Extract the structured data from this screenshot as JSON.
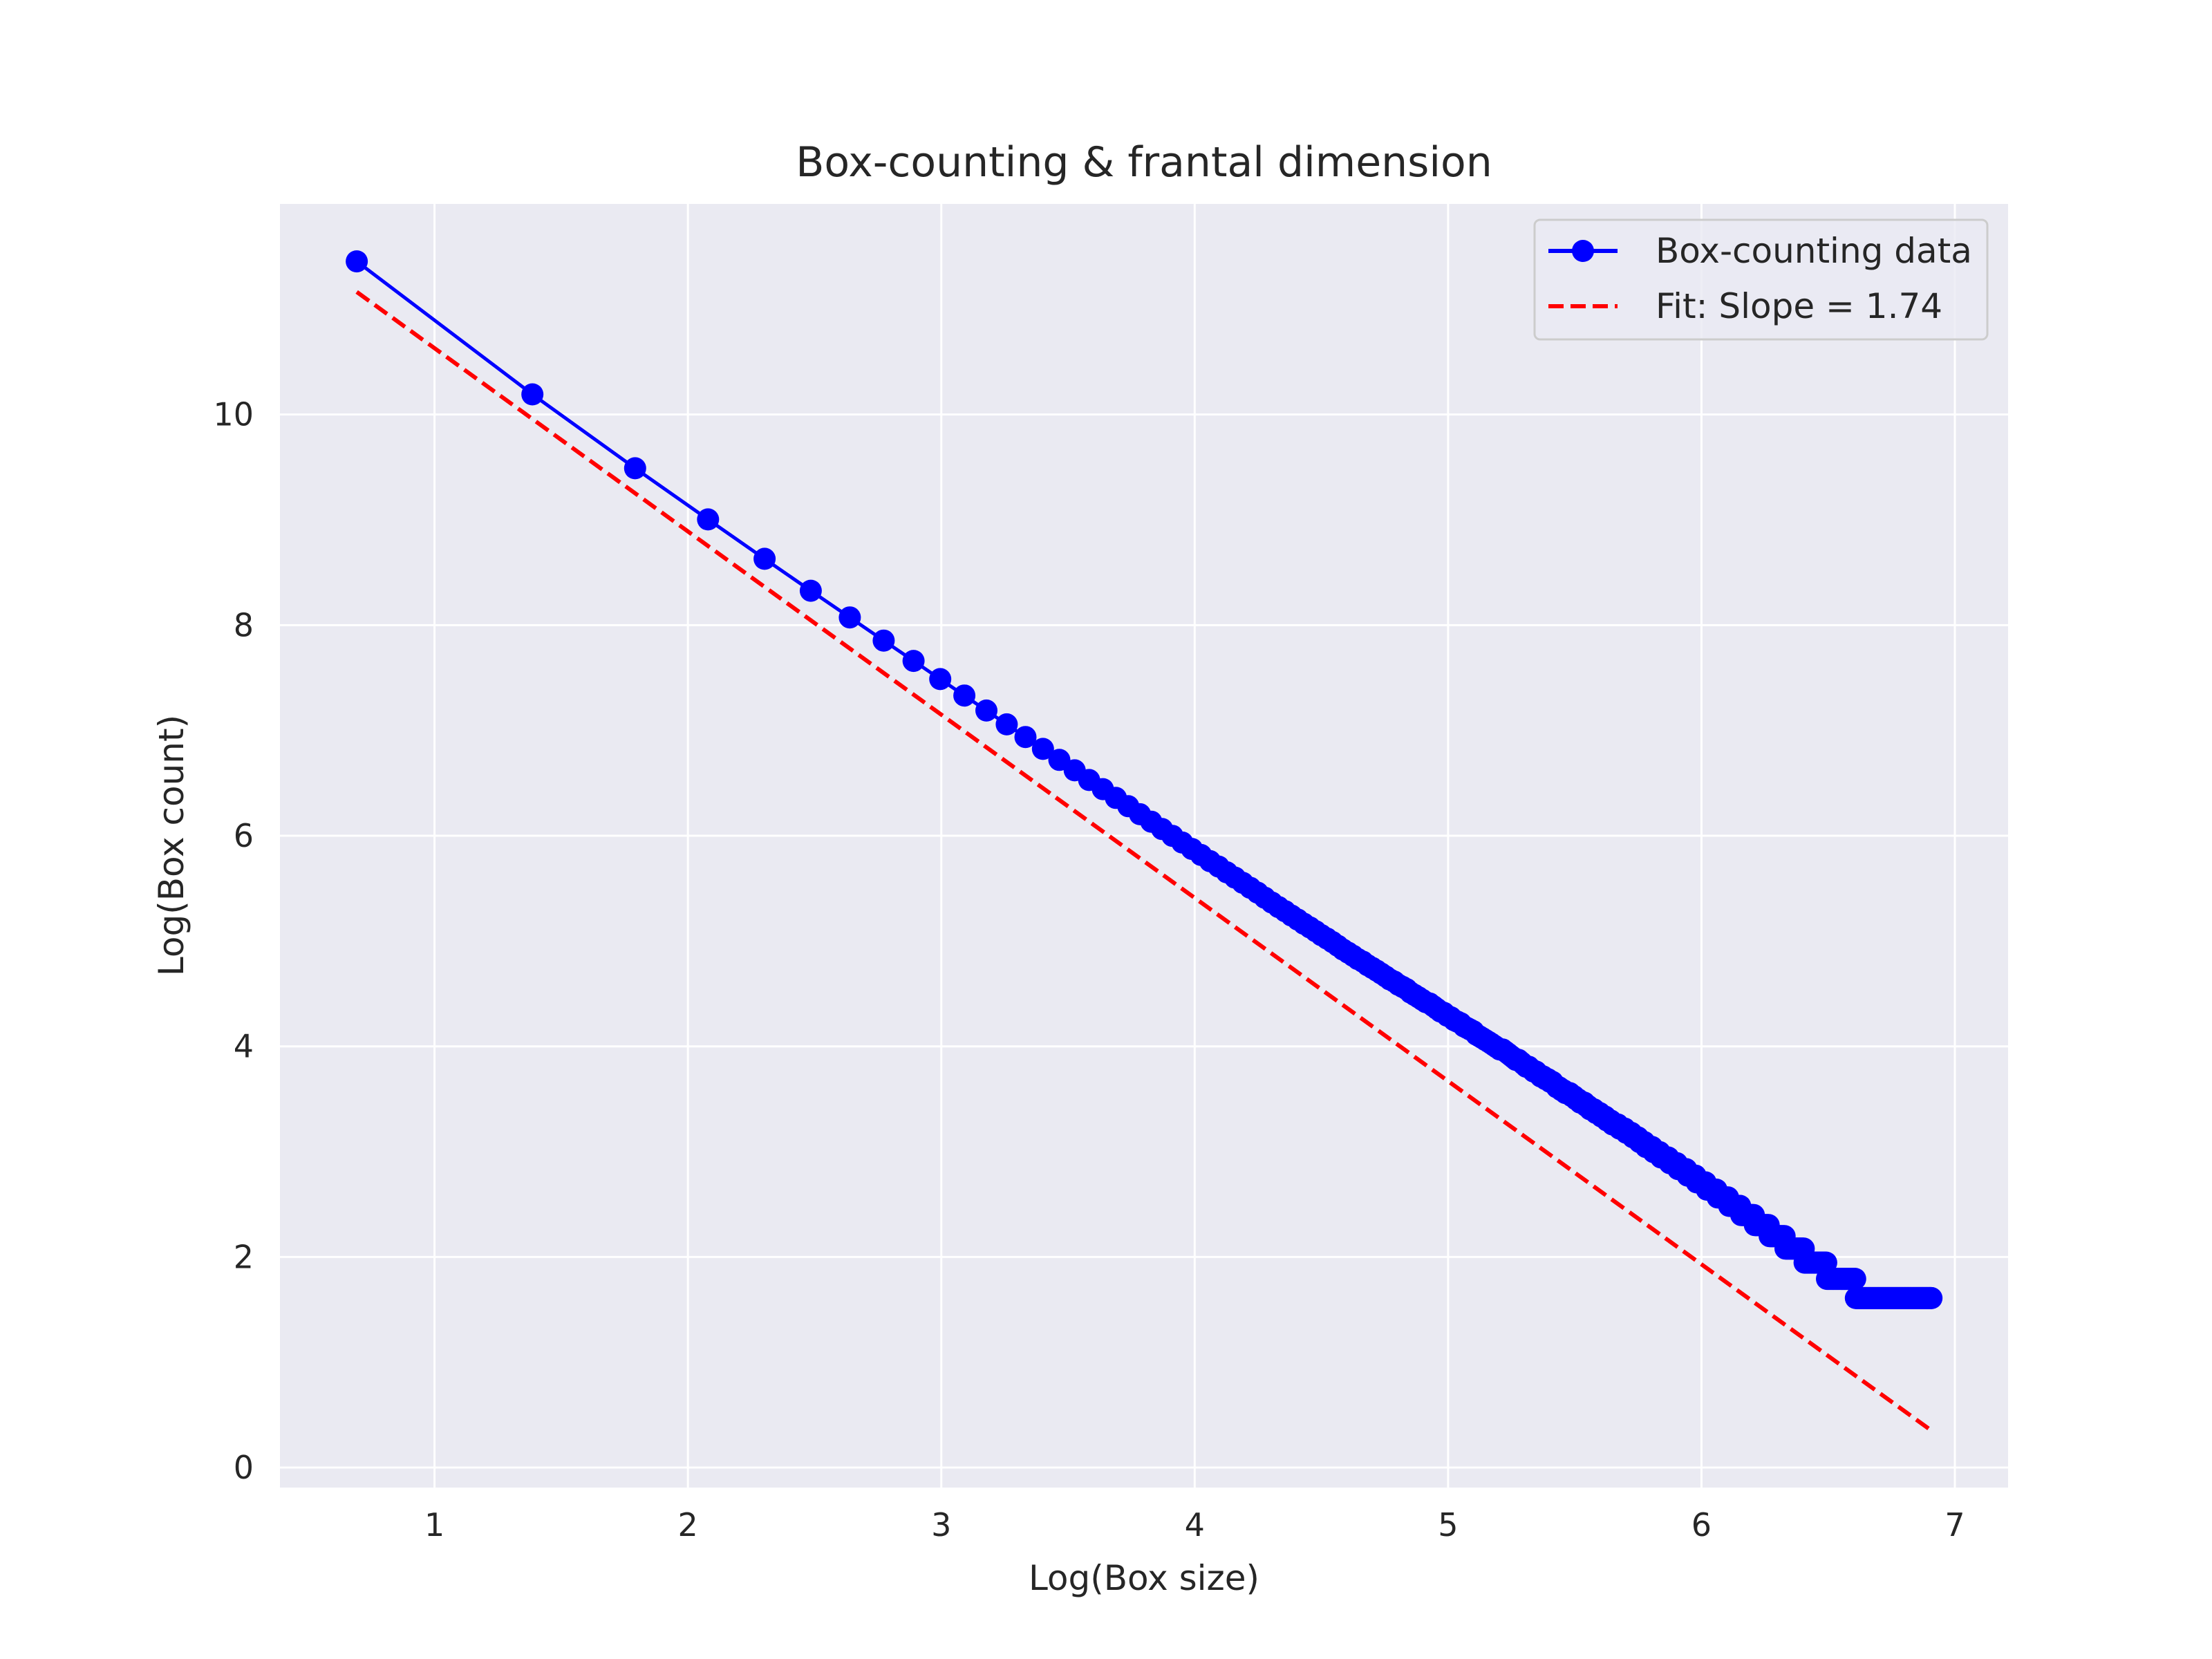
{
  "chart_data": {
    "type": "line",
    "title": "Box-counting & frantal dimension",
    "xlabel": "Log(Box size)",
    "ylabel": "Log(Box count)",
    "xlim": [
      0.39,
      7.21
    ],
    "ylim": [
      -0.19,
      12.0
    ],
    "xticks": [
      1,
      2,
      3,
      4,
      5,
      6,
      7
    ],
    "xtick_labels": [
      "1",
      "2",
      "3",
      "4",
      "5",
      "6",
      "7"
    ],
    "yticks": [
      0,
      2,
      4,
      6,
      8,
      10
    ],
    "ytick_labels": [
      "0",
      "2",
      "4",
      "6",
      "8",
      "10"
    ],
    "grid": true,
    "legend_position": "top-right",
    "colors": {
      "background": "#eaeaf2",
      "grid": "#ffffff",
      "data": "#0000ff",
      "fit": "#ff0000"
    },
    "series": [
      {
        "name": "Box-counting data",
        "style": "solid line with circle markers",
        "box_sizes": [
          2,
          4,
          6,
          8,
          10,
          12,
          14,
          16,
          18,
          20,
          22,
          24,
          26,
          28,
          30,
          32,
          34,
          36,
          38,
          40,
          42,
          44,
          46,
          48,
          50,
          52,
          54,
          56,
          58,
          60,
          62,
          64,
          66,
          68,
          70,
          72,
          74,
          76,
          78,
          80,
          82,
          84,
          86,
          88,
          90,
          92,
          94,
          96,
          98,
          100,
          102,
          104,
          106,
          108,
          110,
          112,
          114,
          116,
          118,
          120,
          122,
          124,
          126,
          128,
          130,
          132,
          134,
          136,
          138,
          140,
          142,
          144,
          146,
          148,
          150,
          152,
          154,
          156,
          158,
          160,
          162,
          164,
          166,
          168,
          170,
          172,
          174,
          176,
          178,
          180,
          182,
          184,
          186,
          188,
          190,
          192,
          194,
          196,
          198,
          200,
          202,
          204,
          206,
          208,
          210,
          212,
          214,
          216,
          218,
          220,
          222,
          224,
          226,
          228,
          230,
          232,
          234,
          236,
          238,
          240,
          242,
          244,
          246,
          248,
          250,
          252,
          254,
          256,
          258,
          260,
          262,
          264,
          266,
          268,
          270,
          272,
          274,
          276,
          278,
          280,
          282,
          284,
          286,
          288,
          290,
          292,
          294,
          296,
          298,
          300,
          302,
          304,
          306,
          308,
          310,
          312,
          314,
          316,
          318,
          320,
          322,
          324,
          326,
          328,
          330,
          332,
          334,
          336,
          338,
          340,
          342,
          344,
          346,
          348,
          350,
          352,
          354,
          356,
          358,
          360,
          362,
          364,
          366,
          368,
          370,
          372,
          374,
          376,
          378,
          380,
          382,
          384,
          386,
          388,
          390,
          392,
          394,
          396,
          398,
          400,
          402,
          404,
          406,
          408,
          410,
          412,
          414,
          416,
          418,
          420,
          422,
          424,
          426,
          428,
          430,
          432,
          434,
          436,
          438,
          440,
          442,
          444,
          446,
          448,
          450,
          452,
          454,
          456,
          458,
          460,
          462,
          464,
          466,
          468,
          470,
          472,
          474,
          476,
          478,
          480,
          482,
          484,
          486,
          488,
          490,
          492,
          494,
          496,
          498,
          500,
          502,
          504,
          506,
          508,
          510,
          512,
          514,
          516,
          518,
          520,
          522,
          524,
          526,
          528,
          530,
          532,
          534,
          536,
          538,
          540,
          542,
          544,
          546,
          548,
          550,
          552,
          554,
          556,
          558,
          560,
          562,
          564,
          566,
          568,
          570,
          572,
          574,
          576,
          578,
          580,
          582,
          584,
          586,
          588,
          590,
          592,
          594,
          596,
          598,
          600,
          602,
          604,
          606,
          608,
          610,
          612,
          614,
          616,
          618,
          620,
          622,
          624,
          626,
          628,
          630,
          632,
          634,
          636,
          638,
          640,
          642,
          644,
          646,
          648,
          650,
          652,
          654,
          656,
          658,
          660,
          662,
          664,
          666,
          668,
          670,
          672,
          674,
          676,
          678,
          680,
          682,
          684,
          686,
          688,
          690,
          692,
          694,
          696,
          698,
          700,
          702,
          704,
          706,
          708,
          710,
          712,
          714,
          716,
          718,
          720,
          722,
          724,
          726,
          728,
          730,
          732,
          734,
          736,
          738,
          740,
          742,
          744,
          746,
          748,
          750,
          752,
          754,
          756,
          758,
          760,
          762,
          764,
          766,
          768,
          770,
          772,
          774,
          776,
          778,
          780,
          782,
          784,
          786,
          788,
          790,
          792,
          794,
          796,
          798,
          800,
          802,
          804,
          806,
          808,
          810,
          812,
          814,
          816,
          818,
          820,
          822,
          824,
          826,
          828,
          830,
          832,
          834,
          836,
          838,
          840,
          842,
          844,
          846,
          848,
          850,
          852,
          854,
          856,
          858,
          860,
          862,
          864,
          866,
          868,
          870,
          872,
          874,
          876,
          878,
          880,
          882,
          884,
          886,
          888,
          890,
          892,
          894,
          896,
          898,
          900,
          902,
          904,
          906,
          908,
          910,
          912,
          914,
          916,
          918,
          920,
          922,
          924,
          926,
          928,
          930,
          932,
          934,
          936,
          938,
          940,
          942,
          944,
          946,
          948,
          950,
          952,
          954,
          956,
          958,
          960,
          962,
          964,
          966,
          968,
          970,
          972,
          974,
          976,
          978,
          980,
          982,
          984,
          986,
          988,
          990,
          992,
          994,
          996,
          998,
          1000
        ],
        "box_counts": [
          94340,
          26674,
          13223,
          8137,
          5596,
          4133,
          3207,
          2574,
          2123,
          1786,
          1528,
          1325,
          1162,
          1030,
          920,
          829,
          751,
          685,
          628,
          578,
          534,
          495,
          461,
          430,
          403,
          378,
          356,
          336,
          317,
          301,
          285,
          271,
          258,
          246,
          235,
          224,
          214,
          205,
          197,
          189,
          182,
          175,
          169,
          163,
          157,
          152,
          147,
          142,
          137,
          133,
          129,
          125,
          122,
          118,
          115,
          112,
          109,
          106,
          103,
          101,
          98,
          96,
          94,
          91,
          89,
          87,
          85,
          83,
          82,
          80,
          78,
          76,
          75,
          73,
          72,
          70,
          69,
          68,
          66,
          65,
          64,
          63,
          61,
          60,
          59,
          58,
          57,
          56,
          55,
          54,
          53,
          53,
          52,
          51,
          50,
          49,
          48,
          48,
          47,
          46,
          45,
          45,
          44,
          43,
          43,
          42,
          41,
          41,
          40,
          40,
          39,
          39,
          38,
          37,
          37,
          36,
          36,
          35,
          35,
          35,
          34,
          34,
          33,
          33,
          32,
          32,
          32,
          31,
          31,
          30,
          30,
          30,
          29,
          29,
          29,
          28,
          28,
          28,
          27,
          27,
          27,
          26,
          26,
          26,
          26,
          25,
          25,
          25,
          25,
          24,
          24,
          24,
          24,
          23,
          23,
          23,
          23,
          22,
          22,
          22,
          22,
          21,
          21,
          21,
          21,
          21,
          20,
          20,
          20,
          20,
          20,
          19,
          19,
          19,
          19,
          19,
          19,
          18,
          18,
          18,
          18,
          18,
          18,
          17,
          17,
          17,
          17,
          17,
          17,
          17,
          16,
          16,
          16,
          16,
          16,
          16,
          16,
          15,
          15,
          15,
          15,
          15,
          15,
          15,
          15,
          14,
          14,
          14,
          14,
          14,
          14,
          14,
          14,
          14,
          13,
          13,
          13,
          13,
          13,
          13,
          13,
          13,
          13,
          13,
          12,
          12,
          12,
          12,
          12,
          12,
          12,
          12,
          12,
          12,
          12,
          11,
          11,
          11,
          11,
          11,
          11,
          11,
          11,
          11,
          11,
          11,
          11,
          11,
          10,
          10,
          10,
          10,
          10,
          10,
          10,
          10,
          10,
          10,
          10,
          10,
          10,
          10,
          10,
          9,
          9,
          9,
          9,
          9,
          9,
          9,
          9,
          9,
          9,
          9,
          9,
          9,
          9,
          9,
          9,
          9,
          8,
          8,
          8,
          8,
          8,
          8,
          8,
          8,
          8,
          8,
          8,
          8,
          8,
          8,
          8,
          8,
          8,
          8,
          8,
          8,
          8,
          8,
          7,
          7,
          7,
          7,
          7,
          7,
          7,
          7,
          7,
          7,
          7,
          7,
          7,
          7,
          7,
          7,
          7,
          7,
          7,
          7,
          7,
          7,
          7,
          7,
          7,
          7,
          7,
          7,
          6,
          6,
          6,
          6,
          6,
          6,
          6,
          6,
          6,
          6,
          6,
          6,
          6,
          6,
          6,
          6,
          6,
          6,
          6,
          6,
          6,
          6,
          6,
          6,
          6,
          6,
          6,
          6,
          6,
          6,
          6,
          6,
          6,
          6,
          6,
          6,
          6,
          6,
          6,
          6,
          5,
          5,
          5,
          5,
          5,
          5,
          5,
          5,
          5,
          5,
          5,
          5,
          5,
          5,
          5,
          5,
          5,
          5,
          5,
          5,
          5,
          5,
          5,
          5,
          5,
          5,
          5,
          5,
          5,
          5,
          5,
          5,
          5,
          5,
          5,
          5,
          5,
          5,
          5,
          5,
          5,
          5,
          5,
          5,
          5,
          5,
          5,
          5,
          5,
          5,
          5,
          5,
          5,
          5,
          5,
          5,
          5,
          5,
          5,
          5,
          5,
          5,
          5,
          5,
          5,
          5,
          5,
          5,
          5,
          5,
          5,
          5,
          5,
          5,
          5,
          5,
          5,
          5,
          5,
          5,
          5,
          5,
          5,
          5,
          5,
          5,
          5,
          5,
          5,
          5,
          5,
          5,
          5,
          5,
          5,
          5,
          5,
          5,
          5,
          5,
          5,
          5,
          5,
          5,
          5,
          5,
          5,
          5,
          5,
          5,
          5,
          5,
          5,
          5,
          5,
          5,
          5,
          5,
          5,
          5,
          5,
          5,
          5,
          5,
          5,
          5,
          5,
          5,
          5,
          5,
          5,
          5,
          5,
          5,
          5,
          5,
          5,
          5,
          5,
          5,
          5,
          5,
          5,
          5,
          5,
          5,
          5,
          5,
          5,
          5,
          5,
          5,
          5,
          5,
          5,
          5,
          5,
          5,
          5,
          5,
          5,
          5,
          5,
          5,
          5,
          5,
          5,
          5,
          5,
          5,
          5,
          5,
          5,
          5
        ]
      },
      {
        "name": "Fit: Slope = 1.74",
        "style": "dashed line",
        "slope": -1.74,
        "intercept": 12.37
      }
    ],
    "legend": [
      {
        "label": "Box-counting data",
        "style": "line-marker"
      },
      {
        "label": "Fit: Slope = 1.74",
        "style": "dashed"
      }
    ]
  }
}
